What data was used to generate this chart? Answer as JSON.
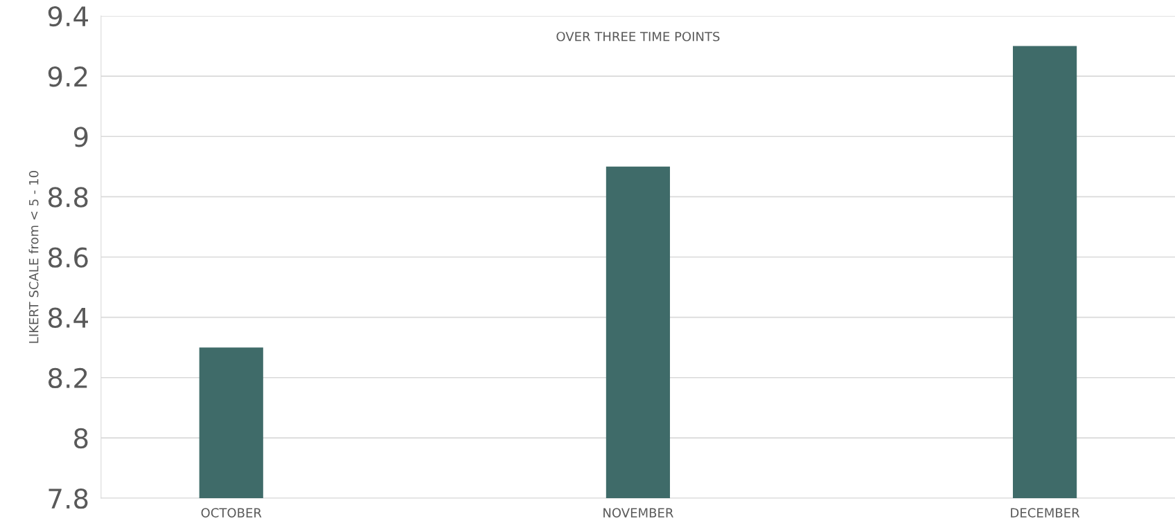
{
  "chart_data": {
    "type": "bar",
    "title": "OVER THREE TIME POINTS",
    "ylabel": "LIKERT SCALE from < 5 - 10",
    "categories": [
      "OCTOBER",
      "NOVEMBER",
      "DECEMBER"
    ],
    "values": [
      8.3,
      8.9,
      9.3
    ],
    "color": "#3f6b69",
    "ylim": [
      7.8,
      9.4
    ],
    "yticks": [
      7.8,
      8,
      8.2,
      8.4,
      8.6,
      8.8,
      9,
      9.2,
      9.4
    ],
    "grid": "y"
  }
}
